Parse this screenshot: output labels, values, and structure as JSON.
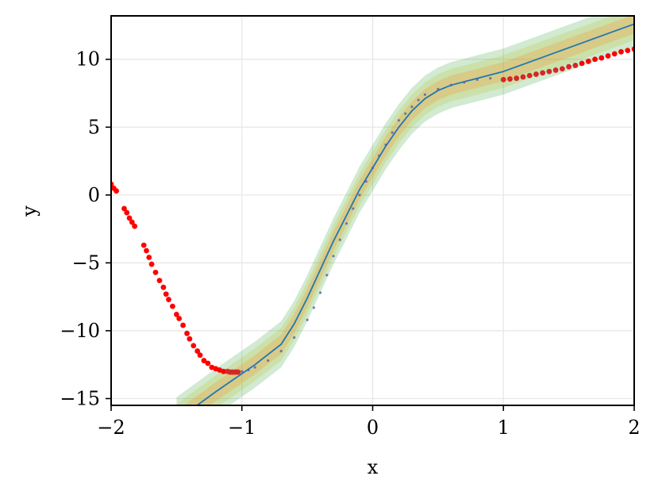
{
  "chart_data": {
    "type": "scatter",
    "title": "",
    "xlabel": "x",
    "ylabel": "y",
    "xlim": [
      -2,
      2
    ],
    "ylim": [
      -15.5,
      13.2
    ],
    "grid": true,
    "xticks": [
      -2,
      -1,
      0,
      1,
      2
    ],
    "xtick_labels": [
      "−2",
      "−1",
      "0",
      "1",
      "2"
    ],
    "yticks": [
      -15,
      -10,
      -5,
      0,
      5,
      10
    ],
    "ytick_labels": [
      "−15",
      "−10",
      "−5",
      "0",
      "5",
      "10"
    ],
    "colors": {
      "mean_line": "#1f77b4",
      "band_outer": "#2ca02c",
      "band_middle": "#bcbd22",
      "band_inner": "#ff7f0e",
      "train_points": "#5b5bb0",
      "test_points": "#ff0000",
      "test_points_alt": "#d62728"
    },
    "series": [
      {
        "kind": "band",
        "x": [
          -1.5,
          -1.2,
          -0.9,
          -0.7,
          -0.6,
          -0.5,
          -0.4,
          -0.3,
          -0.2,
          -0.1,
          0.0,
          0.1,
          0.2,
          0.3,
          0.4,
          0.5,
          0.6,
          0.8,
          1.0,
          1.2,
          1.4,
          1.6,
          1.8,
          2.0
        ],
        "y": [
          -16.6,
          -14.5,
          -12.5,
          -11.0,
          -9.5,
          -7.6,
          -5.5,
          -3.4,
          -1.5,
          0.4,
          2.0,
          3.6,
          5.0,
          6.2,
          7.1,
          7.7,
          8.1,
          8.6,
          9.1,
          9.8,
          10.5,
          11.2,
          11.9,
          12.6
        ],
        "spreads": [
          1.7,
          1.2,
          0.7
        ]
      },
      {
        "kind": "line",
        "x": [
          -1.5,
          -1.2,
          -0.9,
          -0.7,
          -0.6,
          -0.5,
          -0.4,
          -0.3,
          -0.2,
          -0.1,
          0.0,
          0.1,
          0.2,
          0.3,
          0.4,
          0.5,
          0.6,
          0.8,
          1.0,
          1.2,
          1.4,
          1.6,
          1.8,
          2.0
        ],
        "y": [
          -16.6,
          -14.5,
          -12.5,
          -11.0,
          -9.5,
          -7.6,
          -5.5,
          -3.4,
          -1.5,
          0.4,
          2.0,
          3.6,
          5.0,
          6.2,
          7.1,
          7.7,
          8.1,
          8.6,
          9.1,
          9.8,
          10.5,
          11.2,
          11.9,
          12.6
        ]
      },
      {
        "kind": "train_points",
        "x": [
          -1.0,
          -0.95,
          -0.9,
          -0.8,
          -0.7,
          -0.6,
          -0.5,
          -0.45,
          -0.4,
          -0.35,
          -0.3,
          -0.25,
          -0.2,
          -0.15,
          -0.1,
          -0.05,
          0.0,
          0.05,
          0.1,
          0.15,
          0.2,
          0.25,
          0.3,
          0.35,
          0.4,
          0.5,
          0.6,
          0.7,
          0.8,
          0.9
        ],
        "y": [
          -13.0,
          -12.9,
          -12.7,
          -12.2,
          -11.5,
          -10.5,
          -9.2,
          -8.3,
          -7.2,
          -5.9,
          -4.5,
          -3.3,
          -2.1,
          -1.0,
          0.0,
          1.0,
          2.0,
          2.9,
          3.7,
          4.6,
          5.5,
          6.0,
          6.5,
          7.0,
          7.4,
          7.8,
          8.1,
          8.3,
          8.5,
          8.6
        ]
      },
      {
        "kind": "test_points",
        "x": [
          -2.0,
          -1.98,
          -1.96,
          -1.9,
          -1.88,
          -1.86,
          -1.84,
          -1.82,
          -1.75,
          -1.73,
          -1.71,
          -1.69,
          -1.66,
          -1.63,
          -1.6,
          -1.58,
          -1.56,
          -1.53,
          -1.5,
          -1.48,
          -1.45,
          -1.42,
          -1.4,
          -1.37,
          -1.34,
          -1.32,
          -1.29,
          -1.26,
          -1.23,
          -1.2,
          -1.17,
          -1.14,
          -1.11,
          -1.09,
          -1.07,
          -1.05,
          -1.03,
          1.0,
          1.05,
          1.1,
          1.15,
          1.2,
          1.25,
          1.3,
          1.35,
          1.4,
          1.45,
          1.5,
          1.55,
          1.6,
          1.65,
          1.7,
          1.75,
          1.8,
          1.85,
          1.9,
          1.95,
          2.0
        ],
        "y": [
          0.8,
          0.5,
          0.3,
          -1.0,
          -1.3,
          -1.7,
          -2.0,
          -2.3,
          -3.7,
          -4.1,
          -4.6,
          -5.1,
          -5.7,
          -6.3,
          -6.8,
          -7.3,
          -7.7,
          -8.2,
          -8.8,
          -9.1,
          -9.6,
          -10.2,
          -10.6,
          -11.1,
          -11.5,
          -11.8,
          -12.2,
          -12.4,
          -12.7,
          -12.8,
          -12.9,
          -13.0,
          -13.0,
          -13.05,
          -13.05,
          -13.05,
          -13.05,
          8.5,
          8.55,
          8.6,
          8.7,
          8.8,
          8.9,
          9.0,
          9.1,
          9.2,
          9.3,
          9.45,
          9.55,
          9.7,
          9.85,
          10.0,
          10.1,
          10.25,
          10.4,
          10.55,
          10.65,
          10.75
        ]
      }
    ]
  }
}
